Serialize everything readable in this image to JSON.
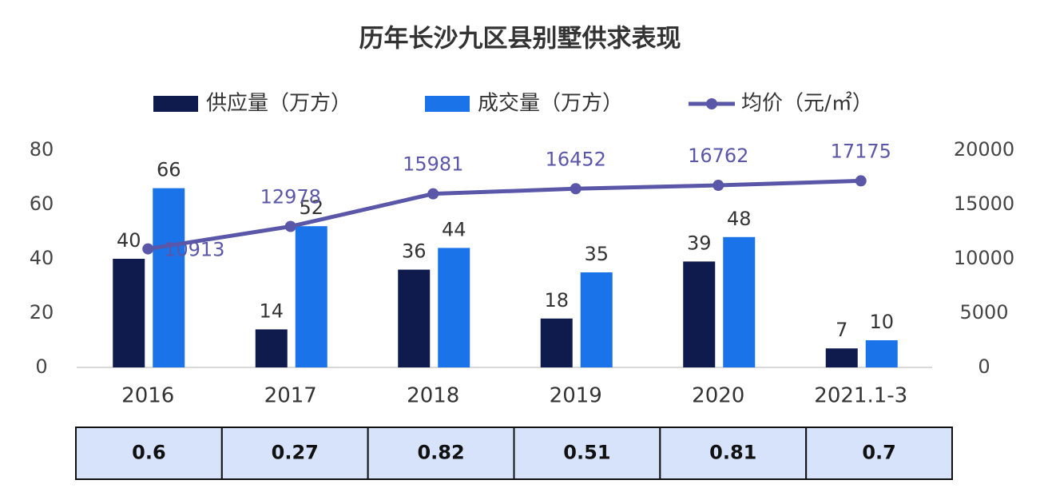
{
  "chart_data": {
    "type": "bar",
    "title": "历年长沙九区县别墅供求表现",
    "categories": [
      "2016",
      "2017",
      "2018",
      "2019",
      "2020",
      "2021.1-3"
    ],
    "series": [
      {
        "name": "供应量（万方）",
        "color": "#0f1b4c",
        "values": [
          40,
          14,
          36,
          18,
          39,
          7
        ]
      },
      {
        "name": "成交量（万方）",
        "color": "#1a73e8",
        "values": [
          66,
          52,
          44,
          35,
          48,
          10
        ]
      },
      {
        "name": "均价（元/㎡）",
        "color": "#5a57a8",
        "type": "line",
        "axis": "y2",
        "values": [
          10913,
          12978,
          15981,
          16452,
          16762,
          17175
        ]
      }
    ],
    "ylim": [
      0,
      80
    ],
    "yticks": [
      0,
      20,
      40,
      60,
      80
    ],
    "y2lim": [
      0,
      20000
    ],
    "y2ticks": [
      0,
      5000,
      10000,
      15000,
      20000
    ],
    "legend": "top",
    "grid": false
  },
  "table": {
    "cells": [
      "0.6",
      "0.27",
      "0.82",
      "0.51",
      "0.81",
      "0.7"
    ]
  }
}
